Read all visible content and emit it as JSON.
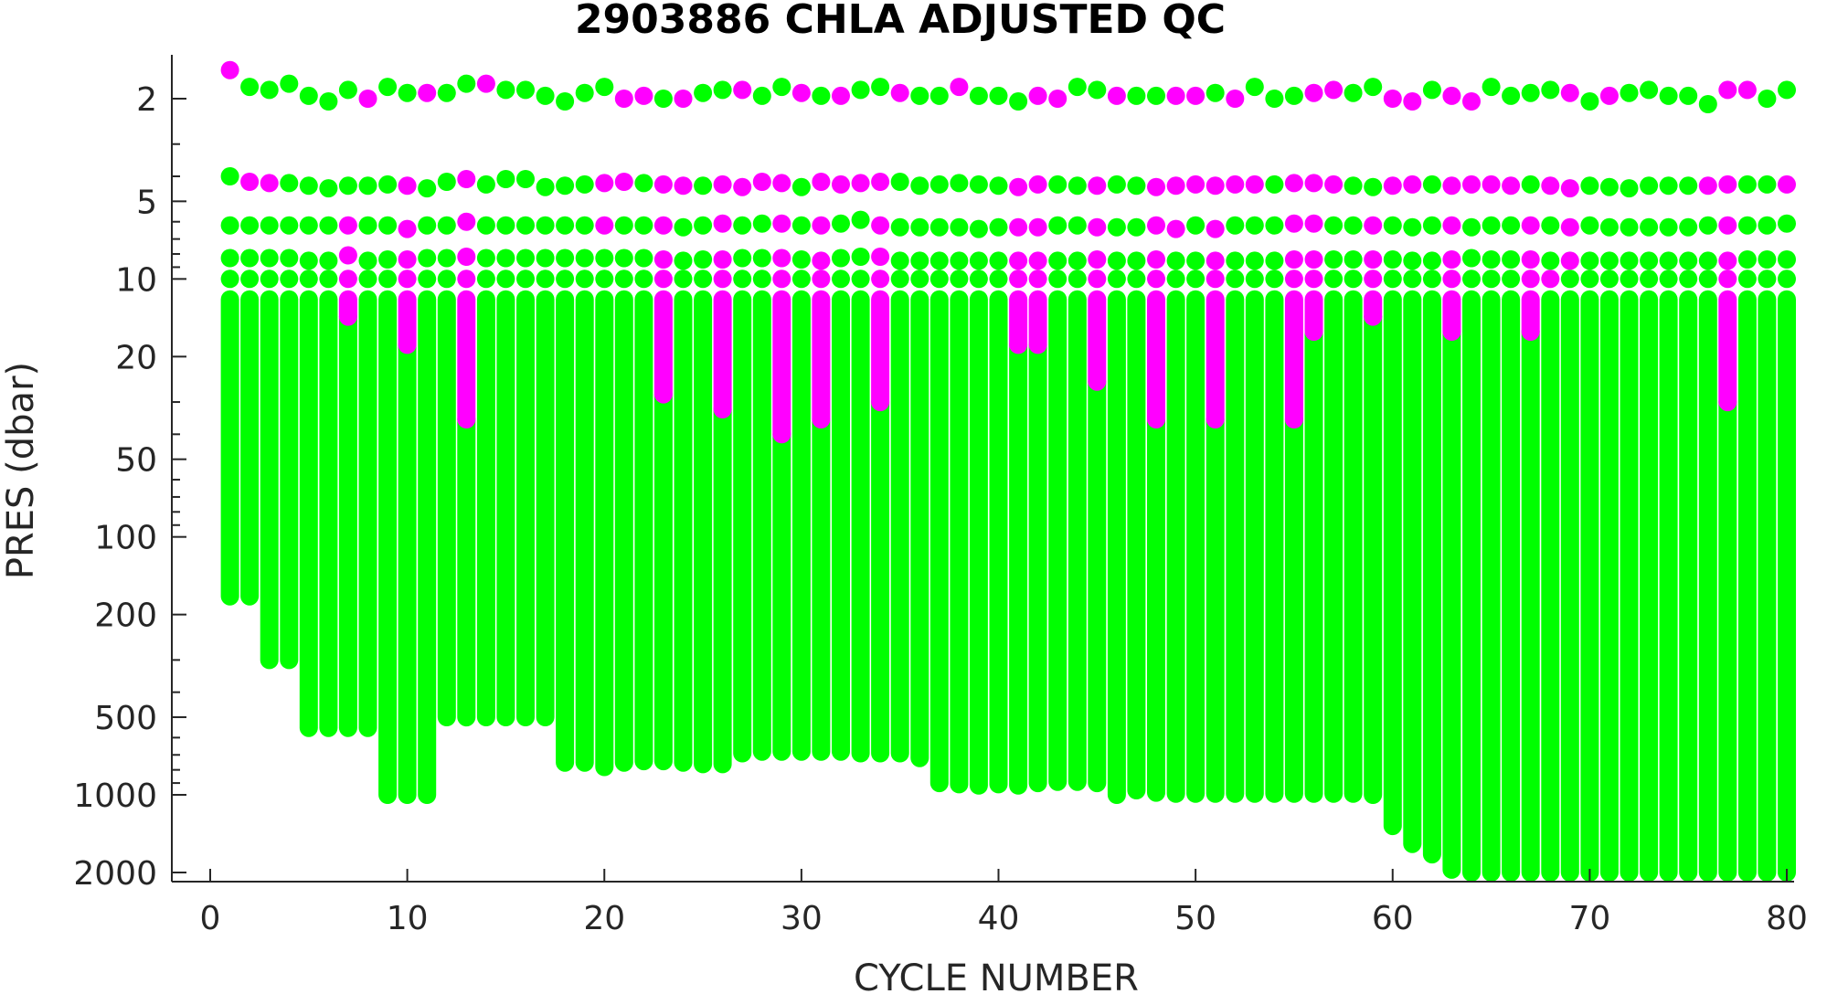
{
  "chart_data": {
    "type": "scatter",
    "title": "2903886  CHLA ADJUSTED QC",
    "xlabel": "CYCLE NUMBER",
    "ylabel": "PRES (dbar)",
    "xlim": [
      -2,
      81
    ],
    "ylim": [
      2100,
      1.3
    ],
    "yscale": "log",
    "y_reversed": true,
    "grid": false,
    "xticks": [
      0,
      10,
      20,
      30,
      40,
      50,
      60,
      70,
      80
    ],
    "yticks": [
      2,
      5,
      10,
      20,
      50,
      100,
      200,
      500,
      1000,
      2000
    ],
    "colors": {
      "good": "#00ff00",
      "flagged": "#ff00ff",
      "axis": "#262626"
    },
    "series": [
      {
        "color": "#00ff00",
        "points": "green samples: a few isolated near-surface points per cycle (about 1.5-2.2, 4-4.6, 6.2, 8.3, 10 dbar) plus a continuous column from about 12 dbar down to max_pressure"
      },
      {
        "color": "#ff00ff",
        "points": "magenta samples: isolated near-surface points and continuous upper segments from about 12 dbar down to magenta_bottom"
      }
    ],
    "cycles": [
      1,
      2,
      3,
      4,
      5,
      6,
      7,
      8,
      9,
      10,
      11,
      12,
      13,
      14,
      15,
      16,
      17,
      18,
      19,
      20,
      21,
      22,
      23,
      24,
      25,
      26,
      27,
      28,
      29,
      30,
      31,
      32,
      33,
      34,
      35,
      36,
      37,
      38,
      39,
      40,
      41,
      42,
      43,
      44,
      45,
      46,
      47,
      48,
      49,
      50,
      51,
      52,
      53,
      54,
      55,
      56,
      57,
      58,
      59,
      60,
      61,
      62,
      63,
      64,
      65,
      66,
      67,
      68,
      69,
      70,
      71,
      72,
      73,
      74,
      75,
      76,
      77,
      78,
      79,
      80
    ],
    "max_pressure": [
      170,
      170,
      300,
      300,
      550,
      550,
      550,
      550,
      1000,
      1000,
      1000,
      500,
      500,
      500,
      500,
      500,
      500,
      750,
      750,
      780,
      750,
      740,
      740,
      750,
      760,
      760,
      690,
      680,
      680,
      680,
      680,
      680,
      690,
      690,
      690,
      720,
      900,
      910,
      920,
      910,
      920,
      900,
      890,
      890,
      900,
      1000,
      960,
      980,
      990,
      990,
      990,
      990,
      990,
      990,
      990,
      990,
      990,
      990,
      1000,
      1320,
      1550,
      1700,
      1950,
      2000,
      2000,
      2000,
      2000,
      2000,
      2000,
      2000,
      2000,
      2000,
      2000,
      2000,
      2000,
      2000,
      2000,
      2000,
      2000,
      2000
    ],
    "magenta_bottom": [
      0,
      0,
      0,
      0,
      0,
      0,
      14,
      0,
      0,
      18,
      0,
      0,
      35,
      0,
      0,
      0,
      0,
      0,
      0,
      0,
      0,
      0,
      28,
      0,
      0,
      32,
      0,
      0,
      40,
      0,
      35,
      0,
      0,
      30,
      0,
      0,
      0,
      0,
      0,
      0,
      18,
      18,
      0,
      0,
      25,
      0,
      0,
      35,
      0,
      0,
      35,
      0,
      0,
      0,
      35,
      16,
      0,
      0,
      14,
      0,
      0,
      0,
      16,
      0,
      0,
      0,
      16,
      12,
      0,
      0,
      0,
      0,
      0,
      0,
      0,
      0,
      30,
      0,
      0,
      0
    ],
    "p1": [
      1.55,
      1.8,
      1.85,
      1.75,
      1.95,
      2.05,
      1.85,
      2.0,
      1.8,
      1.9,
      1.9,
      1.9,
      1.75,
      1.75,
      1.85,
      1.85,
      1.95,
      2.05,
      1.9,
      1.8,
      2.0,
      1.95,
      2.0,
      2.0,
      1.9,
      1.85,
      1.85,
      1.95,
      1.8,
      1.9,
      1.95,
      1.95,
      1.85,
      1.8,
      1.9,
      1.95,
      1.95,
      1.8,
      1.95,
      1.95,
      2.05,
      1.95,
      2.0,
      1.8,
      1.85,
      1.95,
      1.95,
      1.95,
      1.95,
      1.95,
      1.9,
      2.0,
      1.8,
      2.0,
      1.95,
      1.9,
      1.85,
      1.9,
      1.8,
      2.0,
      2.05,
      1.85,
      1.95,
      2.05,
      1.8,
      1.95,
      1.9,
      1.85,
      1.9,
      2.05,
      1.95,
      1.9,
      1.85,
      1.95,
      1.95,
      2.1,
      1.85,
      1.85,
      2.0,
      1.85
    ],
    "p1_flag": [
      1,
      0,
      0,
      0,
      0,
      0,
      0,
      1,
      0,
      0,
      1,
      0,
      0,
      1,
      0,
      0,
      0,
      0,
      0,
      0,
      1,
      1,
      0,
      1,
      0,
      0,
      1,
      0,
      0,
      1,
      0,
      1,
      0,
      0,
      1,
      0,
      0,
      1,
      0,
      0,
      0,
      1,
      1,
      0,
      0,
      1,
      0,
      0,
      1,
      1,
      0,
      1,
      0,
      0,
      0,
      1,
      1,
      0,
      0,
      1,
      1,
      0,
      1,
      1,
      0,
      0,
      0,
      0,
      1,
      0,
      1,
      0,
      0,
      0,
      0,
      0,
      1,
      1,
      0,
      0
    ],
    "p2": [
      4.0,
      4.2,
      4.25,
      4.25,
      4.35,
      4.45,
      4.35,
      4.35,
      4.3,
      4.35,
      4.45,
      4.2,
      4.1,
      4.3,
      4.1,
      4.1,
      4.4,
      4.35,
      4.3,
      4.25,
      4.2,
      4.25,
      4.3,
      4.35,
      4.35,
      4.3,
      4.4,
      4.2,
      4.25,
      4.4,
      4.2,
      4.3,
      4.25,
      4.2,
      4.2,
      4.35,
      4.3,
      4.25,
      4.3,
      4.35,
      4.4,
      4.3,
      4.3,
      4.35,
      4.35,
      4.3,
      4.35,
      4.4,
      4.35,
      4.3,
      4.35,
      4.3,
      4.3,
      4.3,
      4.25,
      4.25,
      4.3,
      4.35,
      4.4,
      4.35,
      4.3,
      4.3,
      4.35,
      4.3,
      4.3,
      4.35,
      4.3,
      4.35,
      4.45,
      4.35,
      4.4,
      4.45,
      4.35,
      4.35,
      4.35,
      4.35,
      4.3,
      4.3,
      4.3,
      4.3
    ],
    "p2_flag": [
      0,
      1,
      1,
      0,
      0,
      0,
      0,
      0,
      0,
      1,
      0,
      0,
      1,
      0,
      0,
      0,
      0,
      0,
      0,
      1,
      1,
      0,
      1,
      1,
      0,
      1,
      1,
      1,
      1,
      0,
      1,
      1,
      1,
      1,
      0,
      0,
      0,
      0,
      0,
      0,
      1,
      1,
      0,
      0,
      1,
      0,
      0,
      1,
      1,
      1,
      1,
      1,
      1,
      0,
      1,
      1,
      1,
      0,
      0,
      1,
      1,
      0,
      1,
      1,
      1,
      1,
      0,
      1,
      1,
      0,
      0,
      0,
      0,
      0,
      0,
      1,
      1,
      0,
      0,
      1
    ],
    "p3": [
      6.2,
      6.2,
      6.2,
      6.2,
      6.2,
      6.2,
      6.2,
      6.2,
      6.2,
      6.4,
      6.2,
      6.2,
      6.0,
      6.2,
      6.2,
      6.2,
      6.2,
      6.2,
      6.2,
      6.2,
      6.2,
      6.2,
      6.2,
      6.3,
      6.2,
      6.1,
      6.2,
      6.1,
      6.1,
      6.2,
      6.2,
      6.1,
      5.9,
      6.2,
      6.3,
      6.3,
      6.3,
      6.3,
      6.4,
      6.3,
      6.3,
      6.3,
      6.2,
      6.2,
      6.3,
      6.3,
      6.3,
      6.2,
      6.4,
      6.2,
      6.4,
      6.2,
      6.2,
      6.2,
      6.1,
      6.1,
      6.2,
      6.2,
      6.2,
      6.2,
      6.3,
      6.2,
      6.2,
      6.3,
      6.2,
      6.2,
      6.2,
      6.2,
      6.3,
      6.2,
      6.3,
      6.3,
      6.3,
      6.3,
      6.3,
      6.2,
      6.2,
      6.2,
      6.2,
      6.1
    ],
    "p3_flag": [
      0,
      0,
      0,
      0,
      0,
      0,
      1,
      0,
      0,
      1,
      0,
      0,
      1,
      0,
      0,
      0,
      0,
      0,
      0,
      1,
      0,
      0,
      1,
      0,
      0,
      1,
      0,
      0,
      1,
      0,
      1,
      0,
      0,
      1,
      0,
      0,
      0,
      0,
      0,
      0,
      1,
      1,
      0,
      0,
      1,
      0,
      0,
      1,
      1,
      0,
      1,
      0,
      0,
      0,
      1,
      1,
      0,
      0,
      1,
      0,
      0,
      0,
      1,
      0,
      0,
      0,
      1,
      0,
      1,
      0,
      0,
      0,
      0,
      0,
      0,
      0,
      1,
      0,
      0,
      0
    ],
    "p4": [
      8.3,
      8.3,
      8.3,
      8.3,
      8.5,
      8.5,
      8.1,
      8.5,
      8.4,
      8.4,
      8.3,
      8.3,
      8.2,
      8.3,
      8.3,
      8.3,
      8.3,
      8.3,
      8.3,
      8.3,
      8.3,
      8.3,
      8.4,
      8.5,
      8.4,
      8.4,
      8.3,
      8.3,
      8.3,
      8.4,
      8.5,
      8.3,
      8.2,
      8.2,
      8.5,
      8.5,
      8.5,
      8.5,
      8.5,
      8.5,
      8.5,
      8.5,
      8.5,
      8.5,
      8.4,
      8.5,
      8.5,
      8.4,
      8.5,
      8.5,
      8.5,
      8.5,
      8.5,
      8.5,
      8.4,
      8.4,
      8.4,
      8.4,
      8.4,
      8.4,
      8.5,
      8.5,
      8.4,
      8.3,
      8.4,
      8.4,
      8.4,
      8.5,
      8.5,
      8.5,
      8.5,
      8.5,
      8.5,
      8.5,
      8.5,
      8.5,
      8.5,
      8.4,
      8.4,
      8.4
    ],
    "p4_flag": [
      0,
      0,
      0,
      0,
      0,
      0,
      1,
      0,
      0,
      1,
      0,
      0,
      1,
      0,
      0,
      0,
      0,
      0,
      0,
      0,
      0,
      0,
      1,
      0,
      0,
      1,
      0,
      0,
      1,
      0,
      1,
      0,
      0,
      1,
      0,
      0,
      0,
      0,
      0,
      0,
      1,
      1,
      0,
      0,
      1,
      0,
      0,
      1,
      0,
      0,
      1,
      0,
      0,
      0,
      1,
      1,
      0,
      0,
      1,
      0,
      0,
      0,
      1,
      0,
      0,
      0,
      1,
      0,
      1,
      0,
      0,
      0,
      0,
      0,
      0,
      0,
      1,
      0,
      0,
      0
    ]
  }
}
